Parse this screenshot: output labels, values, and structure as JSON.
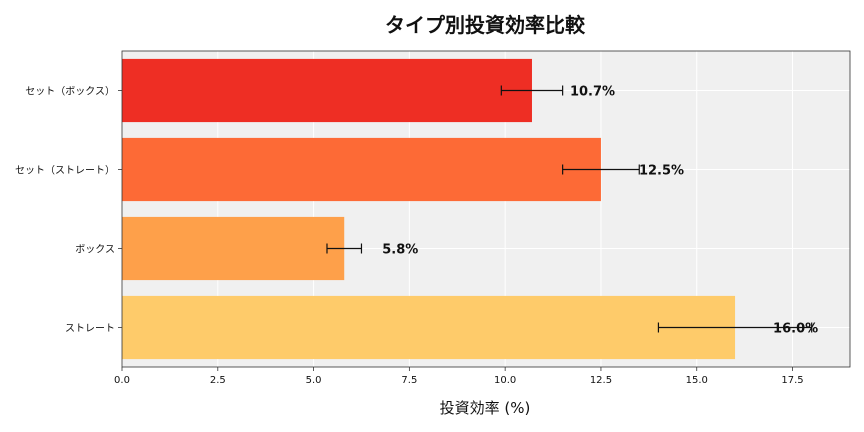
{
  "chart_data": {
    "type": "bar",
    "orientation": "horizontal",
    "title": "タイプ別投資効率比較",
    "xlabel": "投資効率 (%)",
    "ylabel": "",
    "xlim": [
      0,
      19
    ],
    "xticks": [
      "0.0",
      "2.5",
      "5.0",
      "7.5",
      "10.0",
      "12.5",
      "15.0",
      "17.5"
    ],
    "grid": true,
    "categories": [
      "セット（ボックス）",
      "セット（ストレート）",
      "ボックス",
      "ストレート"
    ],
    "values": [
      10.7,
      12.5,
      5.8,
      16.0
    ],
    "error_low": [
      9.9,
      11.5,
      5.35,
      14.0
    ],
    "error_high": [
      11.5,
      13.5,
      6.25,
      18.0
    ],
    "data_labels": [
      "10.7%",
      "12.5%",
      "5.8%",
      "16.0%"
    ],
    "colors": [
      "#ee2e24",
      "#fd6a36",
      "#fea04a",
      "#fecb6a"
    ],
    "background": "#f0f0f0"
  }
}
